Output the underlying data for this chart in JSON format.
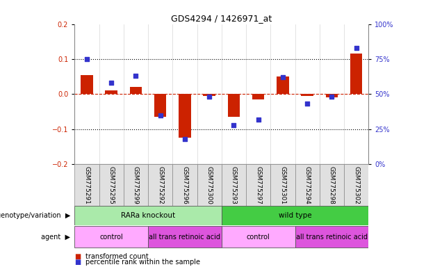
{
  "title": "GDS4294 / 1426971_at",
  "samples": [
    "GSM775291",
    "GSM775295",
    "GSM775299",
    "GSM775292",
    "GSM775296",
    "GSM775300",
    "GSM775293",
    "GSM775297",
    "GSM775301",
    "GSM775294",
    "GSM775298",
    "GSM775302"
  ],
  "red_values": [
    0.055,
    0.01,
    0.02,
    -0.065,
    -0.125,
    -0.005,
    -0.065,
    -0.015,
    0.05,
    -0.005,
    -0.01,
    0.115
  ],
  "blue_values": [
    75,
    58,
    63,
    35,
    18,
    48,
    28,
    32,
    62,
    43,
    48,
    83
  ],
  "ylim_left": [
    -0.2,
    0.2
  ],
  "ylim_right": [
    0,
    100
  ],
  "yticks_left": [
    -0.2,
    -0.1,
    0.0,
    0.1,
    0.2
  ],
  "yticks_right": [
    0,
    25,
    50,
    75,
    100
  ],
  "ytick_labels_right": [
    "0%",
    "25%",
    "50%",
    "75%",
    "100%"
  ],
  "hlines": [
    0.1,
    -0.1
  ],
  "red_color": "#cc2200",
  "blue_color": "#3333cc",
  "dashed_zero_color": "#cc2200",
  "bar_width": 0.5,
  "dot_size": 25,
  "genotype_groups": [
    {
      "label": "RARa knockout",
      "start": 0,
      "end": 6,
      "color": "#aaeaaa"
    },
    {
      "label": "wild type",
      "start": 6,
      "end": 12,
      "color": "#44cc44"
    }
  ],
  "agent_groups": [
    {
      "label": "control",
      "start": 0,
      "end": 3,
      "color": "#ffaaff"
    },
    {
      "label": "all trans retinoic acid",
      "start": 3,
      "end": 6,
      "color": "#dd55dd"
    },
    {
      "label": "control",
      "start": 6,
      "end": 9,
      "color": "#ffaaff"
    },
    {
      "label": "all trans retinoic acid",
      "start": 9,
      "end": 12,
      "color": "#dd55dd"
    }
  ],
  "legend_red": "transformed count",
  "legend_blue": "percentile rank within the sample",
  "bg_color": "#ffffff"
}
